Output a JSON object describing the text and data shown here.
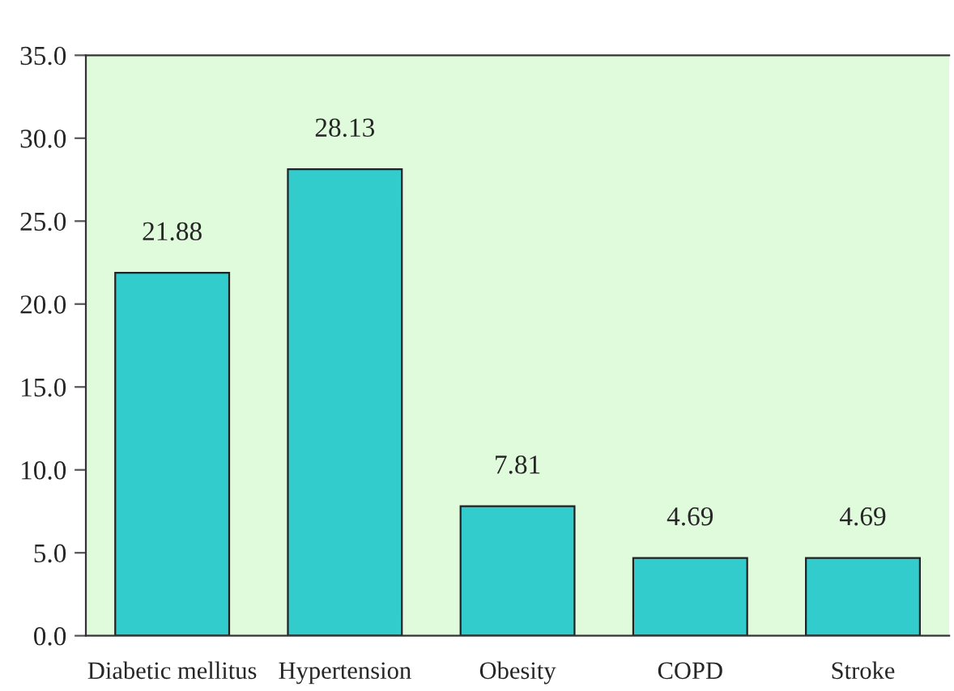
{
  "chart_data": {
    "type": "bar",
    "categories": [
      "Diabetic mellitus",
      "Hypertension",
      "Obesity",
      "COPD",
      "Stroke"
    ],
    "values": [
      21.88,
      28.13,
      7.81,
      4.69,
      4.69
    ],
    "color": "#33cccc",
    "data_labels": true,
    "ylim": [
      0,
      35
    ],
    "yticks": [
      {
        "value": 0,
        "label": "0.0"
      },
      {
        "value": 5,
        "label": "5.0"
      },
      {
        "value": 10,
        "label": "10.0"
      },
      {
        "value": 15,
        "label": "15.0"
      },
      {
        "value": 20,
        "label": "20.0"
      },
      {
        "value": 25,
        "label": "25.0"
      },
      {
        "value": 30,
        "label": "30.0"
      },
      {
        "value": 35,
        "label": "35.0"
      }
    ],
    "grid": false,
    "legend": false
  }
}
